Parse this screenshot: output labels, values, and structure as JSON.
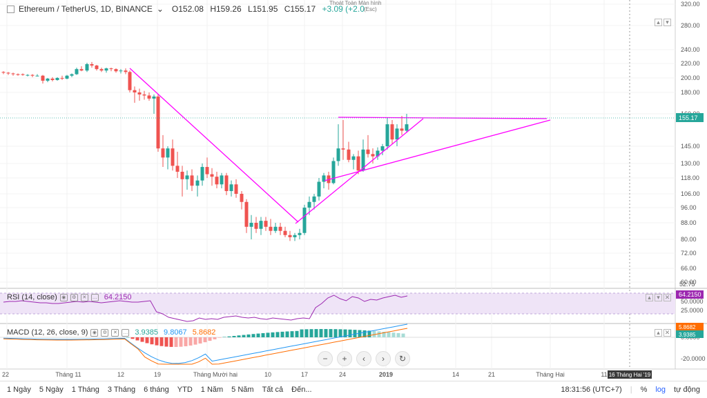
{
  "header": {
    "symbol": "Ethereum / TetherUS, 1D, BINANCE",
    "open": "O152.08",
    "high": "H159.26",
    "low": "L151.95",
    "close": "C155.17",
    "change": "+3.09 (+2.0",
    "fullscreen_tip": "Thoát Toàn Màn hình",
    "fullscreen_tip2": "(Esc)"
  },
  "price_axis": {
    "labels": [
      "320.00",
      "280.00",
      "240.00",
      "220.00",
      "200.00",
      "180.00",
      "160.00",
      "145.00",
      "130.00",
      "118.00",
      "106.00",
      "96.00",
      "88.00",
      "80.00",
      "72.00",
      "66.00",
      "60.00",
      "55.00"
    ],
    "current": "155.17",
    "cut": "52.75"
  },
  "rsi": {
    "label": "RSI (14, close)",
    "value": "64.2150",
    "axis": [
      "75.0000",
      "50.0000",
      "25.0000"
    ],
    "current": "64.2150"
  },
  "macd": {
    "label": "MACD (12, 26, close, 9)",
    "v1": "3.9385",
    "v2": "9.8067",
    "v3": "5.8682",
    "axis": [
      "0.0000",
      "-20.0000"
    ],
    "current1": "5.8682",
    "current2": "3.9385"
  },
  "time_axis": {
    "labels": [
      "22",
      "Tháng 11",
      "12",
      "19",
      "Tháng Mười hai",
      "10",
      "17",
      "24",
      "2019",
      "14",
      "21",
      "Tháng Hai",
      "11"
    ],
    "crosshair": "16 Tháng Hai '19"
  },
  "bottom": {
    "ranges": [
      "1 Ngày",
      "5 Ngày",
      "1 Tháng",
      "3 Tháng",
      "6 tháng",
      "YTD",
      "1 Năm",
      "5 Năm",
      "Tất cả",
      "Đến..."
    ],
    "time": "18:31:56 (UTC+7)",
    "pct": "%",
    "log": "log",
    "auto": "tự động"
  },
  "colors": {
    "up": "#26a69a",
    "down": "#ef5350",
    "trend": "#ff00ff",
    "rsi": "#9c27b0",
    "macd": "#2196f3",
    "signal": "#ff6d00"
  }
}
